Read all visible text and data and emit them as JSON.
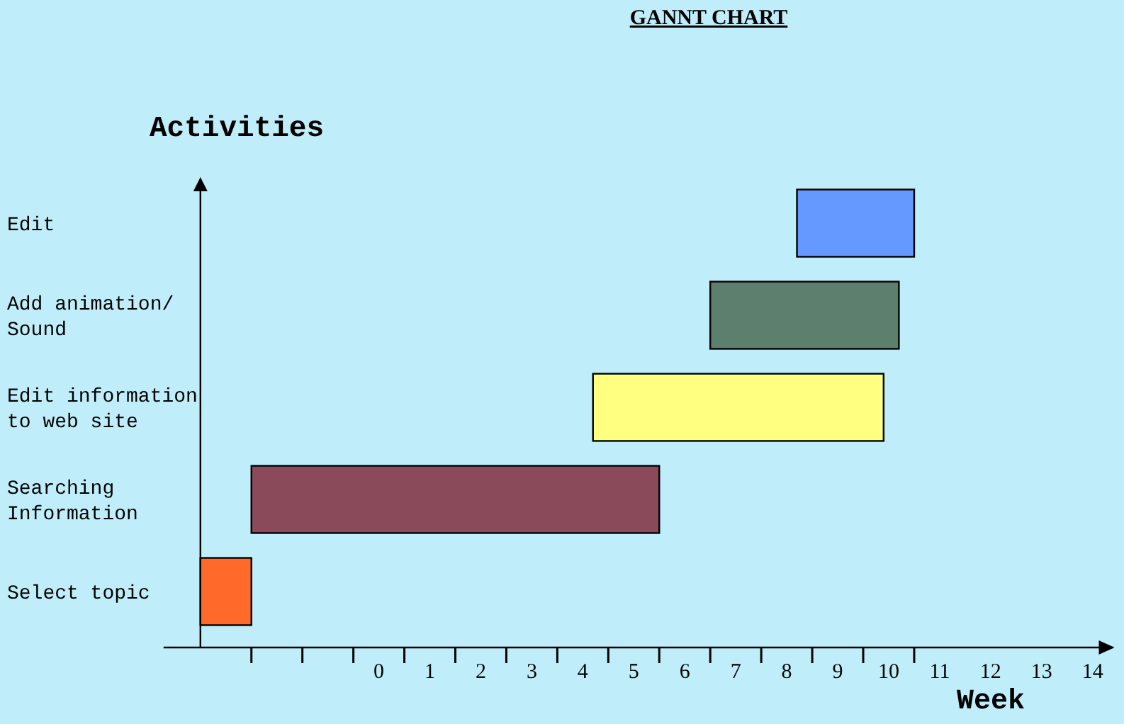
{
  "chart_data": {
    "type": "bar",
    "orientation": "horizontal",
    "title": "GANNT CHART",
    "xlabel": "Week",
    "ylabel": "Activities",
    "categories": [
      "Edit",
      "Add animation/ Sound",
      "Edit information to web site",
      "Searching Information",
      "Select topic"
    ],
    "base": [
      8.2,
      6.5,
      4.2,
      -2.5,
      -3.5
    ],
    "values": [
      2.3,
      3.7,
      5.7,
      8.0,
      1.0
    ],
    "colors": [
      "#6699ff",
      "#5c7f6e",
      "#ffff80",
      "#8b4a5a",
      "#ff6a2a"
    ],
    "xlim": [
      -3.5,
      14.4
    ],
    "xticks": [
      {
        "value": -2.5,
        "label": null
      },
      {
        "value": -1.5,
        "label": null
      },
      {
        "value": -0.5,
        "label": null
      },
      0,
      {
        "value": 0.5,
        "label": null
      },
      1,
      {
        "value": 1.5,
        "label": null
      },
      2,
      {
        "value": 2.5,
        "label": null
      },
      3,
      {
        "value": 3.5,
        "label": null
      },
      4,
      {
        "value": 4.5,
        "label": null
      },
      5,
      {
        "value": 5.5,
        "label": null
      },
      6,
      {
        "value": 6.5,
        "label": null
      },
      7,
      {
        "value": 7.5,
        "label": null
      },
      8,
      {
        "value": 8.5,
        "label": null
      },
      9,
      {
        "value": 9.5,
        "label": null
      },
      10,
      {
        "value": 10.5,
        "label": null
      },
      11,
      12,
      13,
      14
    ]
  }
}
